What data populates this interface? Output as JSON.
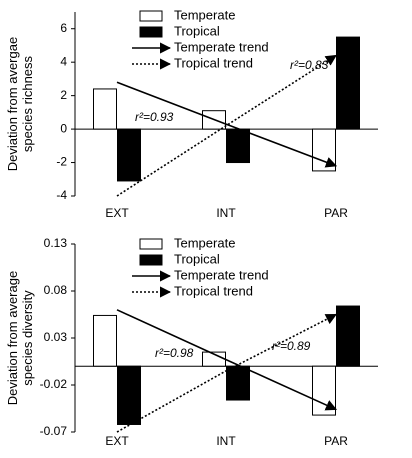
{
  "chart_data": [
    {
      "type": "bar",
      "y_label": "Deviation from avergae species richness",
      "categories": [
        "EXT",
        "INT",
        "PAR"
      ],
      "ylim": [
        -4,
        7
      ],
      "yticks": [
        -4,
        -2,
        0,
        2,
        4,
        6
      ],
      "series": [
        {
          "name": "Temperate",
          "type": "bar",
          "color": "#ffffff",
          "values": [
            2.4,
            1.1,
            -2.5
          ]
        },
        {
          "name": "Tropical",
          "type": "bar",
          "color": "#000000",
          "values": [
            -3.1,
            -2.0,
            5.5
          ]
        },
        {
          "name": "Temperate trend",
          "type": "line",
          "style": "solid",
          "color": "#000000",
          "values": [
            2.8,
            0.3,
            -2.2
          ]
        },
        {
          "name": "Tropical trend",
          "type": "line",
          "style": "dotted",
          "color": "#000000",
          "values": [
            -4.0,
            0.2,
            4.4
          ]
        }
      ],
      "annotations": [
        "r²=0.83",
        "r²=0.93"
      ]
    },
    {
      "type": "bar",
      "y_label": "Deviation from average species diversity",
      "categories": [
        "EXT",
        "INT",
        "PAR"
      ],
      "ylim": [
        -0.07,
        0.13
      ],
      "yticks": [
        -0.07,
        -0.02,
        0.03,
        0.08,
        0.13
      ],
      "series": [
        {
          "name": "Temperate",
          "type": "bar",
          "color": "#ffffff",
          "values": [
            0.054,
            0.015,
            -0.052
          ]
        },
        {
          "name": "Tropical",
          "type": "bar",
          "color": "#000000",
          "values": [
            -0.062,
            -0.036,
            0.064
          ]
        },
        {
          "name": "Temperate trend",
          "type": "line",
          "style": "solid",
          "color": "#000000",
          "values": [
            0.06,
            0.007,
            -0.046
          ]
        },
        {
          "name": "Tropical trend",
          "type": "line",
          "style": "dotted",
          "color": "#000000",
          "values": [
            -0.07,
            -0.005,
            0.055
          ]
        }
      ],
      "annotations": [
        "r²=0.89",
        "r²=0.98"
      ]
    }
  ]
}
